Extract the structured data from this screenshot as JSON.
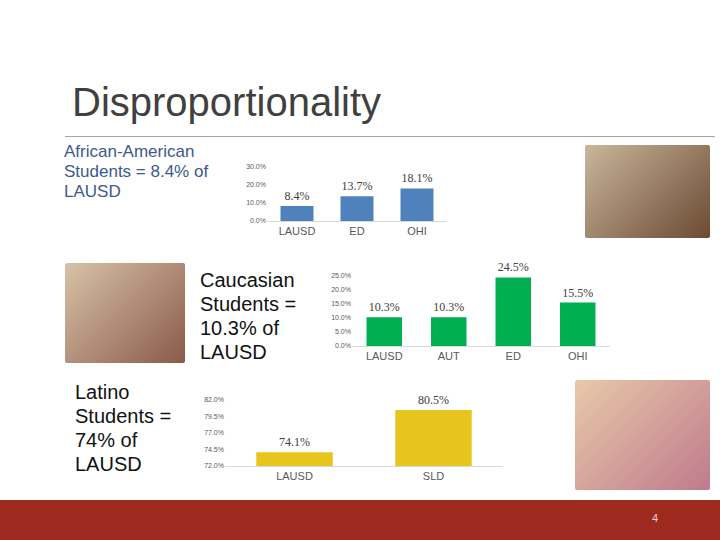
{
  "slide": {
    "title": "Disproportionality",
    "captions": [
      "African-American Students = 8.4% of LAUSD",
      "Caucasian Students = 10.3% of LAUSD",
      "Latino Students = 74% of LAUSD"
    ],
    "page_number": "4"
  },
  "chart_data": [
    {
      "type": "bar",
      "categories": [
        "LAUSD",
        "ED",
        "OHI"
      ],
      "values": [
        8.4,
        13.7,
        18.1
      ],
      "value_labels": [
        "8.4%",
        "13.7%",
        "18.1%"
      ],
      "color": "#4f81bd",
      "ylim": [
        0,
        30
      ],
      "yticks": [
        {
          "value": 0,
          "label": "0.0%"
        },
        {
          "value": 10,
          "label": "10.0%"
        },
        {
          "value": 20,
          "label": "20.0%"
        },
        {
          "value": 30,
          "label": "30.0%"
        }
      ],
      "grid": false,
      "data_labels": true
    },
    {
      "type": "bar",
      "categories": [
        "LAUSD",
        "AUT",
        "ED",
        "OHI"
      ],
      "values": [
        10.3,
        10.3,
        24.5,
        15.5
      ],
      "value_labels": [
        "10.3%",
        "10.3%",
        "24.5%",
        "15.5%"
      ],
      "color": "#00b050",
      "ylim": [
        0,
        25
      ],
      "yticks": [
        {
          "value": 0,
          "label": "0.0%"
        },
        {
          "value": 5,
          "label": "5.0%"
        },
        {
          "value": 10,
          "label": "10.0%"
        },
        {
          "value": 15,
          "label": "15.0%"
        },
        {
          "value": 20,
          "label": "20.0%"
        },
        {
          "value": 25,
          "label": "25.0%"
        }
      ],
      "grid": false,
      "data_labels": true
    },
    {
      "type": "bar",
      "categories": [
        "LAUSD",
        "SLD"
      ],
      "values": [
        74.1,
        80.5
      ],
      "value_labels": [
        "74.1%",
        "80.5%"
      ],
      "color": "#e8c51d",
      "ylim": [
        72,
        82
      ],
      "yticks": [
        {
          "value": 72,
          "label": "72.0%"
        },
        {
          "value": 74.5,
          "label": "74.5%"
        },
        {
          "value": 77,
          "label": "77.0%"
        },
        {
          "value": 79.5,
          "label": "79.5%"
        },
        {
          "value": 82,
          "label": "82.0%"
        }
      ],
      "grid": false,
      "data_labels": true
    }
  ]
}
